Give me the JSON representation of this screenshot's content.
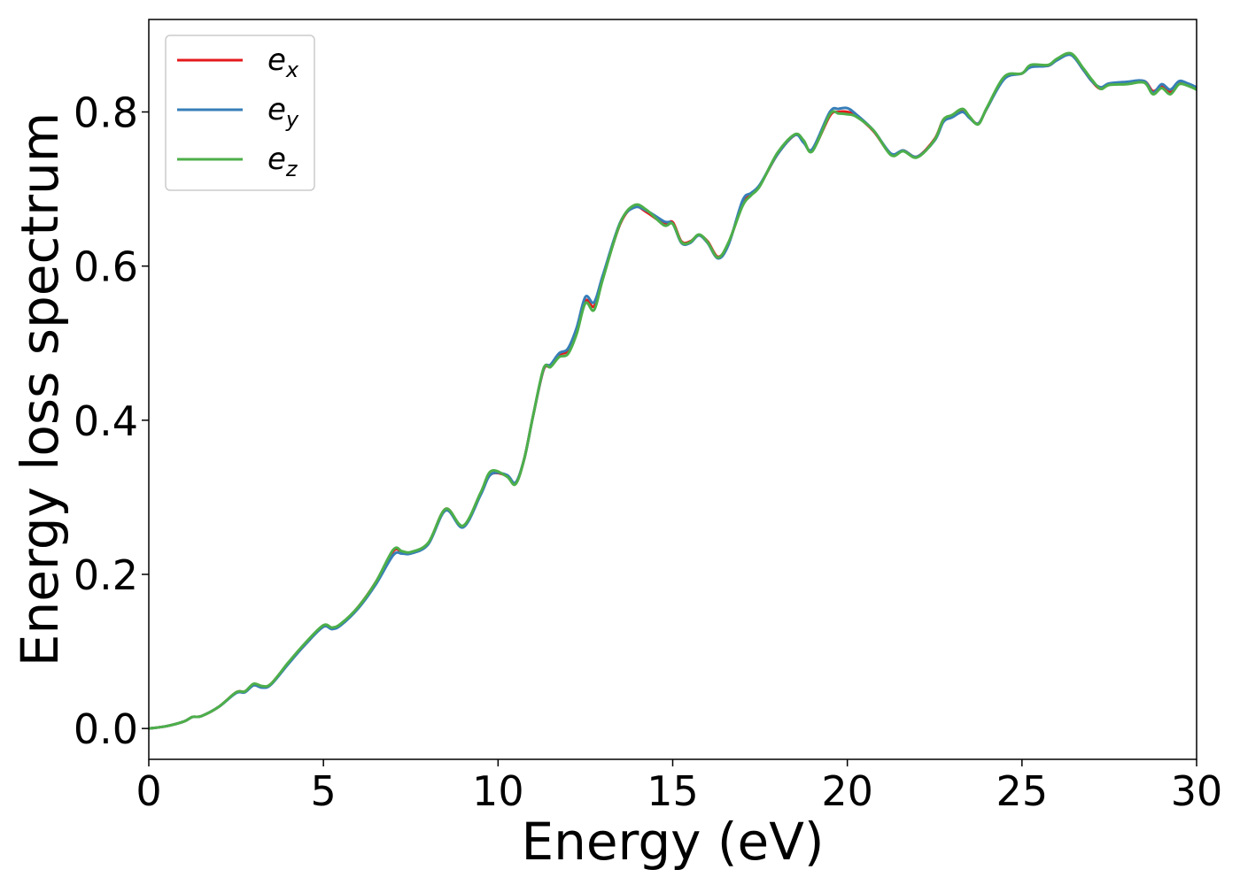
{
  "chart_data": {
    "type": "line",
    "xlabel": "Energy (eV)",
    "ylabel": "Energy loss spectrum",
    "xlim": [
      0,
      30
    ],
    "ylim": [
      -0.04,
      0.92
    ],
    "xticks": [
      0,
      5,
      10,
      15,
      20,
      25,
      30
    ],
    "xtick_labels": [
      "0",
      "5",
      "10",
      "15",
      "20",
      "25",
      "30"
    ],
    "yticks": [
      0.0,
      0.2,
      0.4,
      0.6,
      0.8
    ],
    "ytick_labels": [
      "0.0",
      "0.2",
      "0.4",
      "0.6",
      "0.8"
    ],
    "grid": false,
    "legend_position": "top-left",
    "x": [
      0,
      0.5,
      1.0,
      1.25,
      1.5,
      2.0,
      2.5,
      2.75,
      3.0,
      3.25,
      3.5,
      4.0,
      4.5,
      5.0,
      5.25,
      5.5,
      6.0,
      6.5,
      7.0,
      7.25,
      7.5,
      8.0,
      8.5,
      9.0,
      9.5,
      9.8,
      10.25,
      10.5,
      10.75,
      11.0,
      11.3,
      11.5,
      11.75,
      12.0,
      12.25,
      12.5,
      12.75,
      13.0,
      13.5,
      13.9,
      14.25,
      14.75,
      15.0,
      15.25,
      15.5,
      15.75,
      16.0,
      16.3,
      16.6,
      17.0,
      17.25,
      17.5,
      18.0,
      18.5,
      18.75,
      19.0,
      19.5,
      19.75,
      20.0,
      20.25,
      20.75,
      21.25,
      21.6,
      22.0,
      22.5,
      22.75,
      23.0,
      23.3,
      23.5,
      23.75,
      24.0,
      24.5,
      25.0,
      25.25,
      25.75,
      26.0,
      26.4,
      26.75,
      27.0,
      27.25,
      27.5,
      28.0,
      28.5,
      28.75,
      29.0,
      29.25,
      29.5,
      29.75,
      30.0
    ],
    "series": [
      {
        "name": "e",
        "subscript": "x",
        "color": "#e41a1c",
        "values": [
          0.0,
          0.003,
          0.009,
          0.015,
          0.016,
          0.028,
          0.047,
          0.048,
          0.057,
          0.054,
          0.058,
          0.085,
          0.11,
          0.133,
          0.13,
          0.135,
          0.158,
          0.19,
          0.23,
          0.229,
          0.228,
          0.24,
          0.285,
          0.262,
          0.305,
          0.33,
          0.328,
          0.318,
          0.35,
          0.405,
          0.465,
          0.47,
          0.485,
          0.49,
          0.515,
          0.555,
          0.548,
          0.585,
          0.655,
          0.677,
          0.67,
          0.655,
          0.657,
          0.632,
          0.632,
          0.64,
          0.632,
          0.612,
          0.63,
          0.68,
          0.693,
          0.705,
          0.745,
          0.77,
          0.762,
          0.75,
          0.795,
          0.8,
          0.8,
          0.795,
          0.775,
          0.745,
          0.75,
          0.742,
          0.765,
          0.79,
          0.795,
          0.803,
          0.793,
          0.785,
          0.805,
          0.845,
          0.85,
          0.86,
          0.86,
          0.868,
          0.875,
          0.855,
          0.84,
          0.83,
          0.836,
          0.838,
          0.84,
          0.827,
          0.833,
          0.826,
          0.838,
          0.836,
          0.83
        ]
      },
      {
        "name": "e",
        "subscript": "y",
        "color": "#377eb8",
        "values": [
          0.0,
          0.003,
          0.009,
          0.015,
          0.016,
          0.028,
          0.046,
          0.047,
          0.056,
          0.053,
          0.057,
          0.084,
          0.11,
          0.132,
          0.129,
          0.134,
          0.156,
          0.187,
          0.225,
          0.227,
          0.227,
          0.239,
          0.283,
          0.261,
          0.303,
          0.33,
          0.329,
          0.319,
          0.35,
          0.405,
          0.466,
          0.472,
          0.487,
          0.493,
          0.52,
          0.56,
          0.553,
          0.588,
          0.657,
          0.676,
          0.672,
          0.658,
          0.655,
          0.63,
          0.63,
          0.64,
          0.63,
          0.61,
          0.628,
          0.685,
          0.695,
          0.706,
          0.745,
          0.77,
          0.76,
          0.752,
          0.8,
          0.804,
          0.805,
          0.797,
          0.776,
          0.746,
          0.75,
          0.742,
          0.763,
          0.787,
          0.793,
          0.8,
          0.792,
          0.785,
          0.805,
          0.843,
          0.85,
          0.858,
          0.86,
          0.867,
          0.874,
          0.855,
          0.84,
          0.832,
          0.837,
          0.839,
          0.84,
          0.825,
          0.836,
          0.829,
          0.84,
          0.837,
          0.832
        ]
      },
      {
        "name": "e",
        "subscript": "z",
        "color": "#4daf4a",
        "values": [
          0.0,
          0.003,
          0.009,
          0.015,
          0.016,
          0.028,
          0.047,
          0.048,
          0.058,
          0.055,
          0.058,
          0.086,
          0.112,
          0.134,
          0.131,
          0.136,
          0.158,
          0.19,
          0.232,
          0.23,
          0.229,
          0.241,
          0.285,
          0.263,
          0.306,
          0.334,
          0.327,
          0.317,
          0.35,
          0.405,
          0.467,
          0.469,
          0.482,
          0.486,
          0.512,
          0.552,
          0.543,
          0.583,
          0.656,
          0.679,
          0.673,
          0.653,
          0.655,
          0.631,
          0.631,
          0.641,
          0.631,
          0.611,
          0.631,
          0.678,
          0.692,
          0.704,
          0.747,
          0.771,
          0.763,
          0.749,
          0.797,
          0.798,
          0.797,
          0.794,
          0.776,
          0.744,
          0.749,
          0.741,
          0.764,
          0.79,
          0.796,
          0.804,
          0.794,
          0.784,
          0.806,
          0.846,
          0.85,
          0.861,
          0.861,
          0.869,
          0.876,
          0.857,
          0.842,
          0.83,
          0.835,
          0.836,
          0.838,
          0.823,
          0.831,
          0.823,
          0.836,
          0.834,
          0.829
        ]
      }
    ]
  }
}
